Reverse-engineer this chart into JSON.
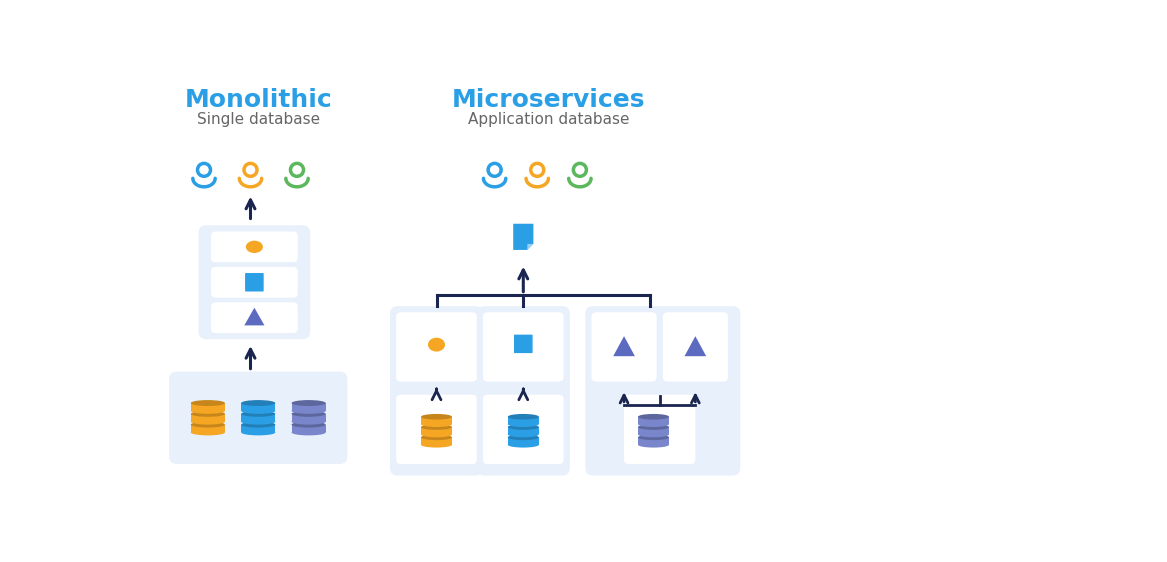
{
  "bg_color": "#ffffff",
  "mono_title": "Monolithic",
  "mono_subtitle": "Single database",
  "micro_title": "Microservices",
  "micro_subtitle": "Application database",
  "title_color": "#2B9FE6",
  "subtitle_color": "#666666",
  "user_colors": [
    "#2B9FE6",
    "#F5A623",
    "#5CB85C"
  ],
  "arrow_color": "#1a2550",
  "box_bg": "#E8F0FB",
  "inner_box_bg": "#ffffff",
  "shape_orange": "#F5A623",
  "shape_blue": "#2B9FE6",
  "shape_purple": "#5C6BC0",
  "db_orange": "#F5A623",
  "db_blue": "#2B9FE6",
  "db_purple": "#7986CB"
}
